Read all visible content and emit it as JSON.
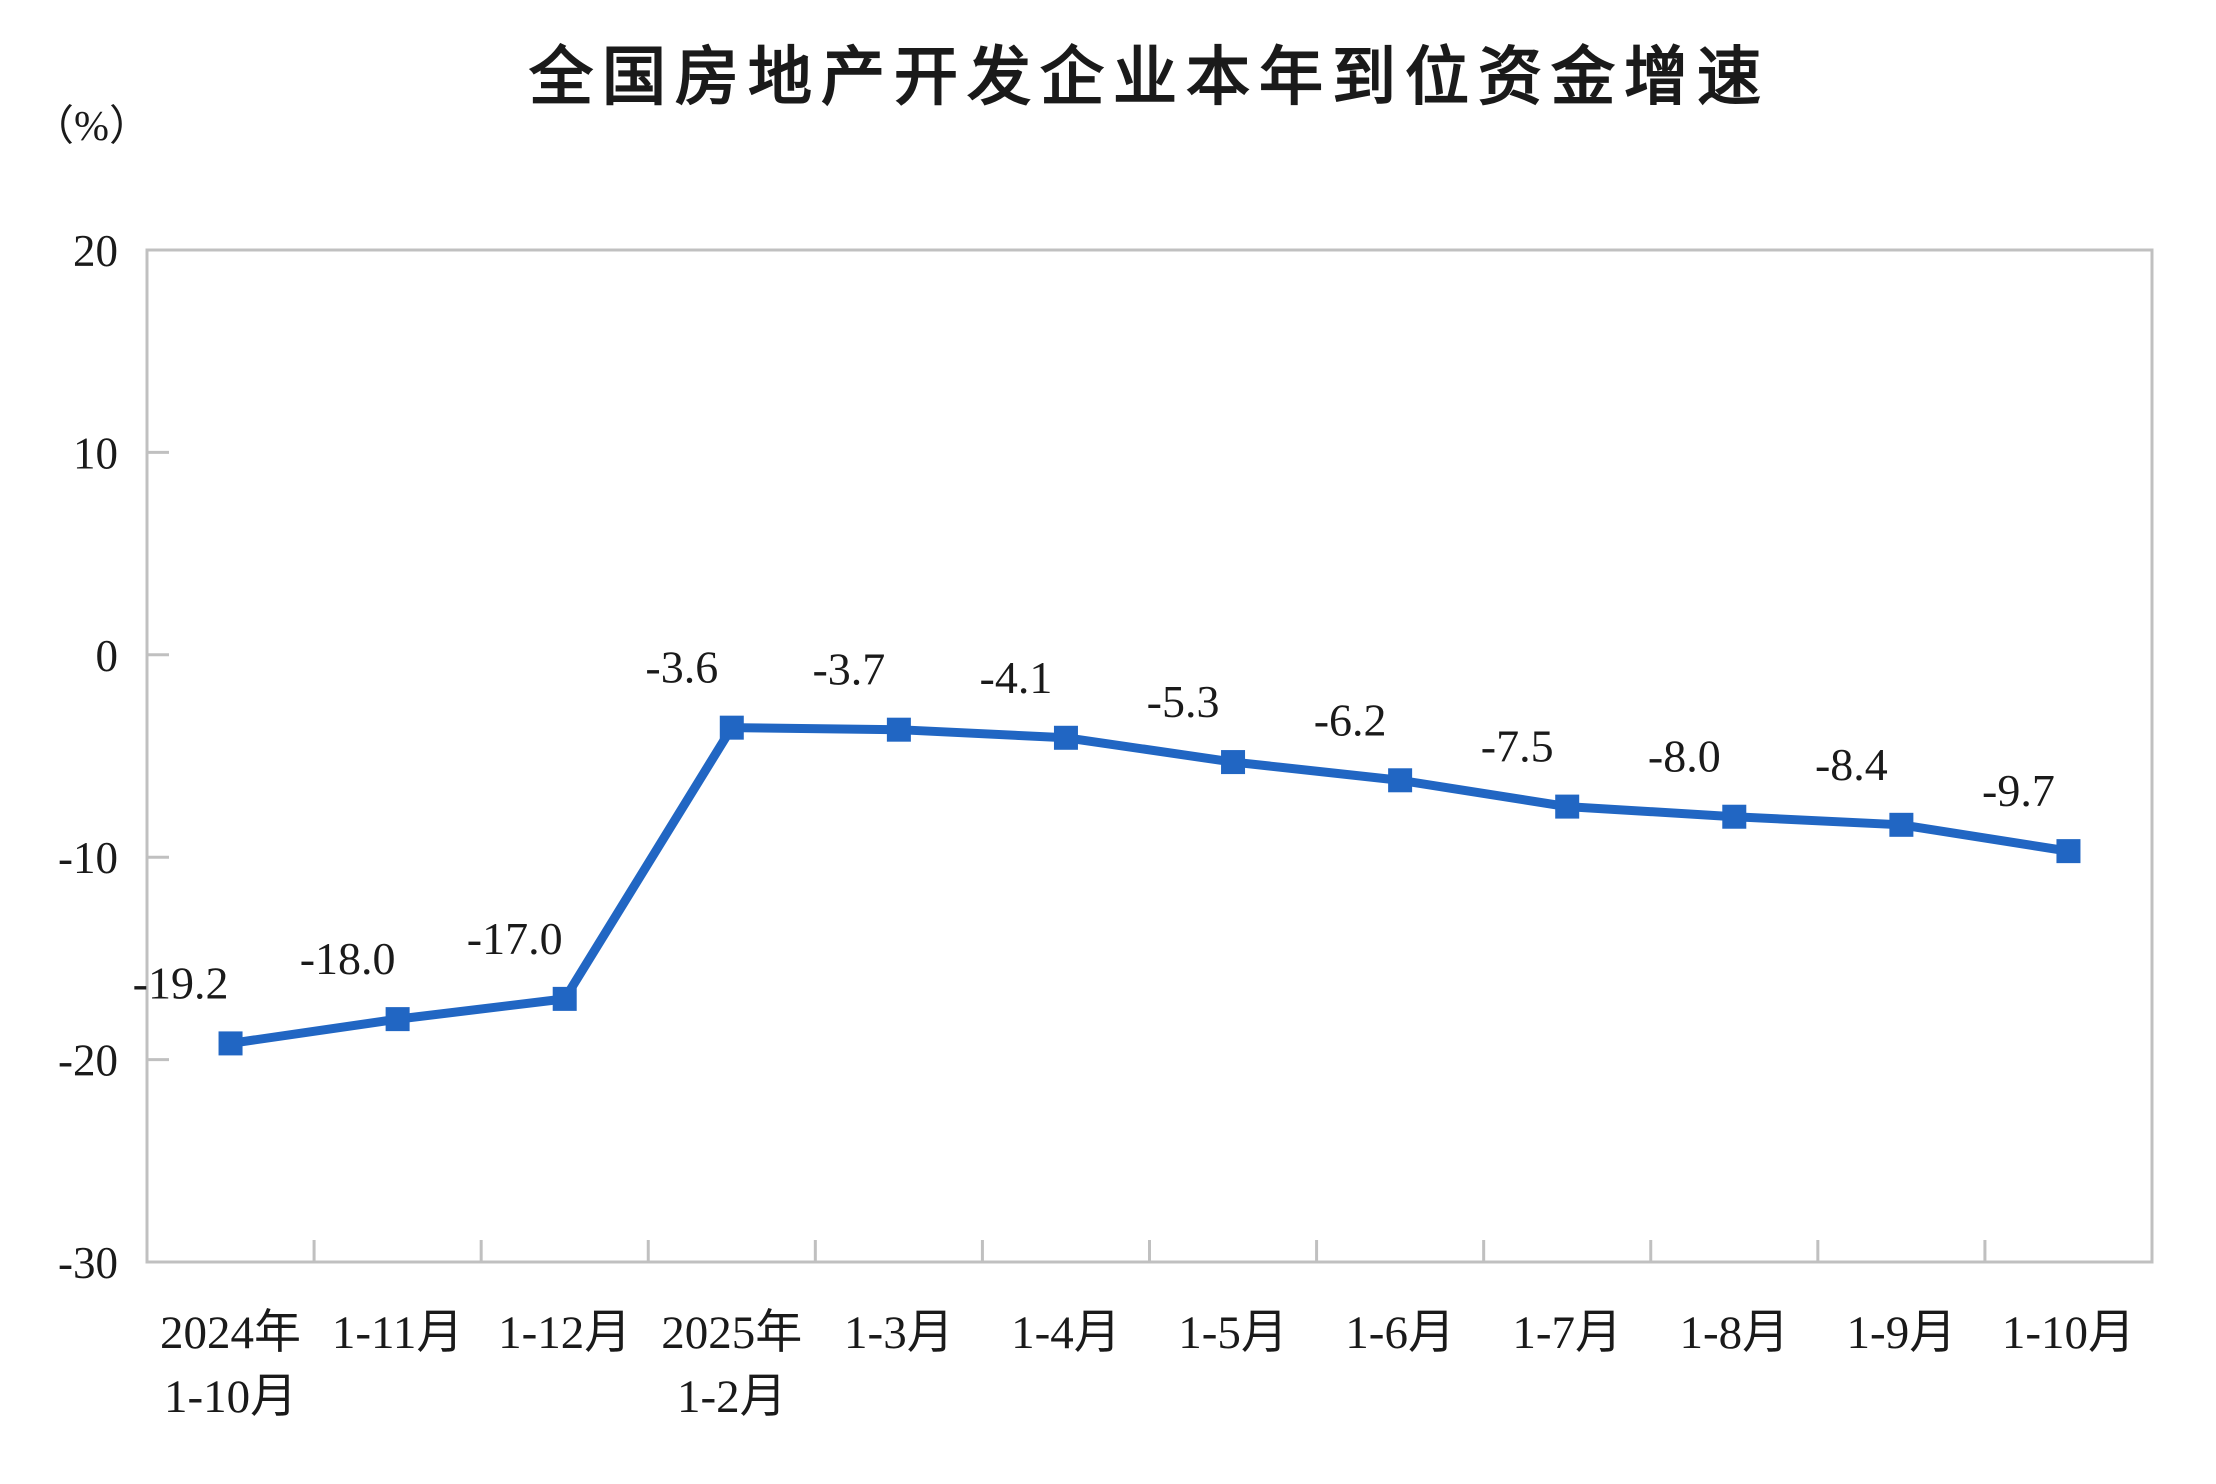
{
  "colors": {
    "line": "#2166C3",
    "axis": "#C0C0C0",
    "text": "#1A1A1A"
  },
  "chart_data": {
    "type": "line",
    "title": "全国房地产开发企业本年到位资金增速",
    "unit": "（%）",
    "categories": [
      "2024年\n1-10月",
      "1-11月",
      "1-12月",
      "2025年\n1-2月",
      "1-3月",
      "1-4月",
      "1-5月",
      "1-6月",
      "1-7月",
      "1-8月",
      "1-9月",
      "1-10月"
    ],
    "values": [
      -19.2,
      -18.0,
      -17.0,
      -3.6,
      -3.7,
      -4.1,
      -5.3,
      -6.2,
      -7.5,
      -8.0,
      -8.4,
      -9.7
    ],
    "data_labels": [
      "-19.2",
      "-18.0",
      "-17.0",
      "-3.6",
      "-3.7",
      "-4.1",
      "-5.3",
      "-6.2",
      "-7.5",
      "-8.0",
      "-8.4",
      "-9.7"
    ],
    "ylim": [
      -30,
      20
    ],
    "yticks": [
      20,
      10,
      0,
      -10,
      -20,
      -30
    ],
    "xlabel": "",
    "ylabel": "（%）",
    "grid": false,
    "legend": "none",
    "marker": "square"
  }
}
